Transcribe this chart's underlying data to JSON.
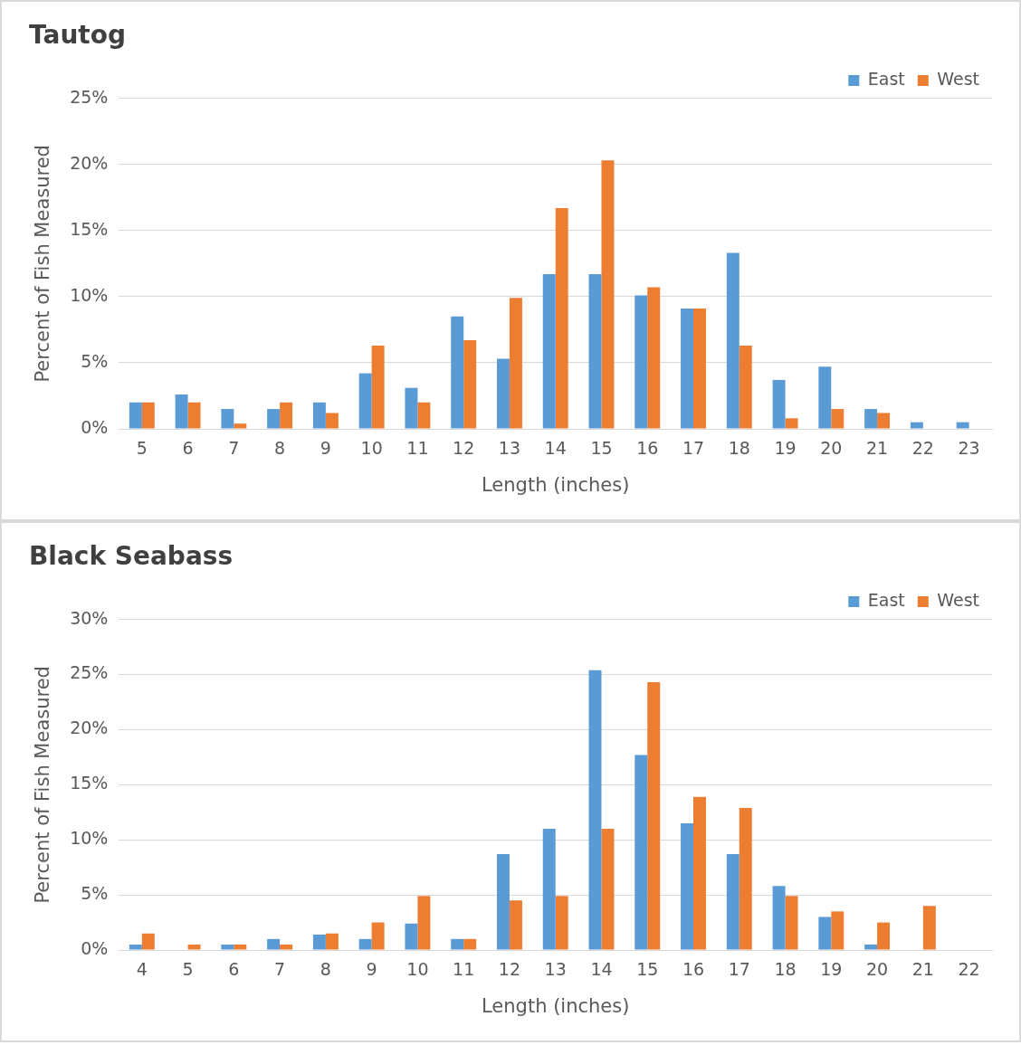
{
  "chart_data": [
    {
      "type": "bar",
      "title": "Tautog",
      "xlabel": "Length (inches)",
      "ylabel": "Percent of Fish Measured",
      "categories": [
        "5",
        "6",
        "7",
        "8",
        "9",
        "10",
        "11",
        "12",
        "13",
        "14",
        "15",
        "16",
        "17",
        "18",
        "19",
        "20",
        "21",
        "22",
        "23"
      ],
      "series": [
        {
          "name": "East",
          "color": "#5b9bd5",
          "values": [
            2.0,
            2.6,
            1.5,
            1.5,
            2.0,
            4.2,
            3.1,
            8.5,
            5.3,
            11.7,
            11.7,
            10.1,
            9.1,
            13.3,
            3.7,
            4.7,
            1.5,
            0.5,
            0.5
          ]
        },
        {
          "name": "West",
          "color": "#ed7d31",
          "values": [
            2.0,
            2.0,
            0.4,
            2.0,
            1.2,
            6.3,
            2.0,
            6.7,
            9.9,
            16.7,
            20.3,
            10.7,
            9.1,
            6.3,
            0.8,
            1.5,
            1.2,
            0,
            0
          ]
        }
      ],
      "ylim": [
        0,
        25
      ],
      "yticks": [
        {
          "value": 0,
          "label": "0%"
        },
        {
          "value": 5,
          "label": "5%"
        },
        {
          "value": 10,
          "label": "10%"
        },
        {
          "value": 15,
          "label": "15%"
        },
        {
          "value": 20,
          "label": "20%"
        },
        {
          "value": 25,
          "label": "25%"
        }
      ],
      "grid": "y",
      "legend": "top right"
    },
    {
      "type": "bar",
      "title": "Black Seabass",
      "xlabel": "Length (inches)",
      "ylabel": "Percent of Fish Measured",
      "categories": [
        "4",
        "5",
        "6",
        "7",
        "8",
        "9",
        "10",
        "11",
        "12",
        "13",
        "14",
        "15",
        "16",
        "17",
        "18",
        "19",
        "20",
        "21",
        "22"
      ],
      "series": [
        {
          "name": "East",
          "color": "#5b9bd5",
          "values": [
            0.5,
            0,
            0.5,
            1.0,
            1.4,
            1.0,
            2.4,
            1.0,
            8.7,
            11.0,
            25.4,
            17.7,
            11.5,
            8.7,
            5.8,
            3.0,
            0.5,
            0,
            0
          ]
        },
        {
          "name": "West",
          "color": "#ed7d31",
          "values": [
            1.5,
            0.5,
            0.5,
            0.5,
            1.5,
            2.5,
            4.9,
            1.0,
            4.5,
            4.9,
            11.0,
            24.3,
            13.9,
            12.9,
            4.9,
            3.5,
            2.5,
            4.0,
            0
          ]
        }
      ],
      "ylim": [
        0,
        30
      ],
      "yticks": [
        {
          "value": 0,
          "label": "0%"
        },
        {
          "value": 5,
          "label": "5%"
        },
        {
          "value": 10,
          "label": "10%"
        },
        {
          "value": 15,
          "label": "15%"
        },
        {
          "value": 20,
          "label": "20%"
        },
        {
          "value": 25,
          "label": "25%"
        },
        {
          "value": 30,
          "label": "30%"
        }
      ],
      "grid": "y",
      "legend": "top right"
    }
  ]
}
